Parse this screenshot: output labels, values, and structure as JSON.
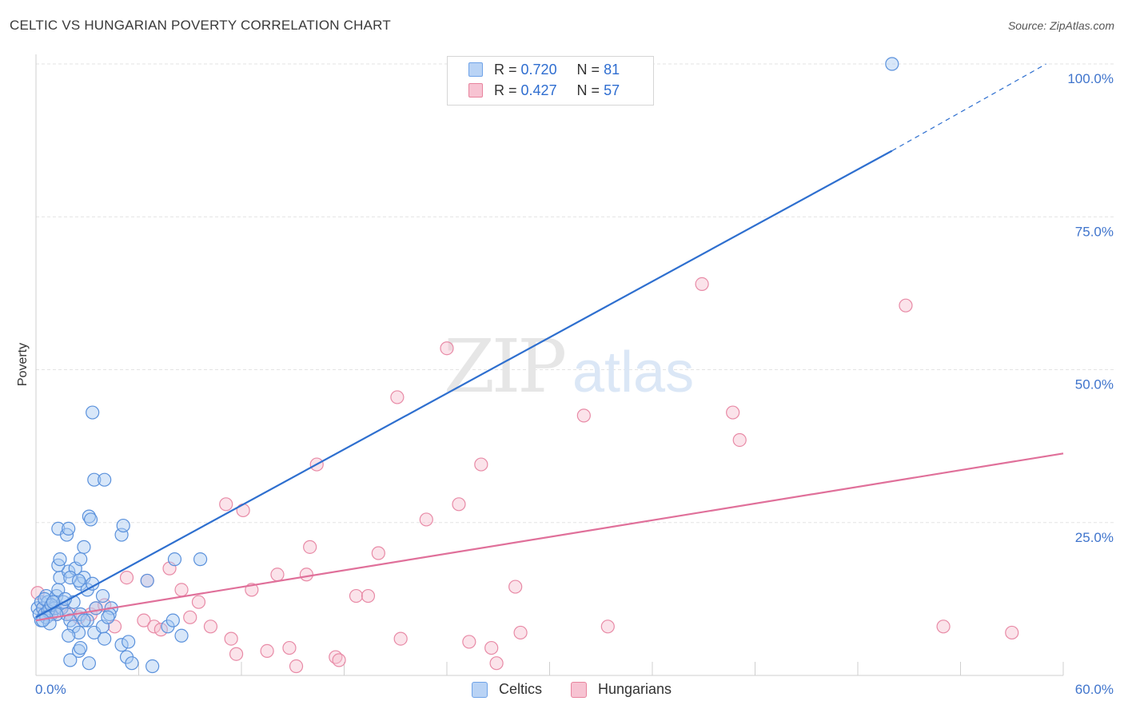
{
  "title": "CELTIC VS HUNGARIAN POVERTY CORRELATION CHART",
  "source": "Source: ZipAtlas.com",
  "watermark": {
    "zip": "ZIP",
    "atlas": "atlas"
  },
  "legend": {
    "r_label": "R =",
    "n_label": "N =",
    "rows": [
      {
        "name": "Celtics",
        "r": "0.720",
        "n": "81",
        "color": "#6fa3e8",
        "fill": "#b9d3f5"
      },
      {
        "name": "Hungarians",
        "r": "0.427",
        "n": "57",
        "color": "#e8849e",
        "fill": "#f7c3d2"
      }
    ]
  },
  "chart_data": {
    "type": "scatter",
    "title": "CELTIC VS HUNGARIAN POVERTY CORRELATION CHART",
    "xlabel": "",
    "ylabel": "Poverty",
    "xlim": [
      0,
      60
    ],
    "ylim": [
      0,
      100
    ],
    "x_tick_labels": [
      "0.0%",
      "60.0%"
    ],
    "y_ticks": [
      25,
      50,
      75,
      100
    ],
    "y_tick_labels": [
      "25.0%",
      "50.0%",
      "75.0%",
      "100.0%"
    ],
    "grid": true,
    "series": [
      {
        "name": "Celtics",
        "color": "#2e6fcf",
        "point_fill": "#a9c9f2",
        "point_stroke": "#5a91dc",
        "trend": {
          "x0": 0,
          "y0": 9.5,
          "x1": 50,
          "y1": 85.8,
          "dash_to_x": 59,
          "dash_to_y": 100
        },
        "points": [
          [
            0.1,
            11
          ],
          [
            0.2,
            10
          ],
          [
            0.3,
            12
          ],
          [
            0.4,
            11
          ],
          [
            0.5,
            10
          ],
          [
            0.6,
            13
          ],
          [
            0.7,
            12
          ],
          [
            0.8,
            11
          ],
          [
            0.9,
            10
          ],
          [
            1.0,
            12
          ],
          [
            1.1,
            11
          ],
          [
            1.2,
            13
          ],
          [
            0.3,
            9
          ],
          [
            0.5,
            12.5
          ],
          [
            0.7,
            10.5
          ],
          [
            0.9,
            11.5
          ],
          [
            1.3,
            14
          ],
          [
            1.5,
            11
          ],
          [
            1.6,
            12
          ],
          [
            1.8,
            10
          ],
          [
            2.0,
            9
          ],
          [
            1.4,
            16
          ],
          [
            1.9,
            17
          ],
          [
            2.3,
            17.5
          ],
          [
            2.6,
            15
          ],
          [
            2.8,
            16
          ],
          [
            3.0,
            14
          ],
          [
            3.3,
            15
          ],
          [
            3.5,
            11
          ],
          [
            3.9,
            13
          ],
          [
            4.4,
            11
          ],
          [
            4.3,
            10
          ],
          [
            1.3,
            24
          ],
          [
            1.8,
            23
          ],
          [
            1.9,
            24
          ],
          [
            2.8,
            21
          ],
          [
            2.6,
            19
          ],
          [
            1.3,
            18
          ],
          [
            1.4,
            19
          ],
          [
            3.1,
            26
          ],
          [
            3.2,
            25.5
          ],
          [
            3.4,
            32
          ],
          [
            4.0,
            32
          ],
          [
            5.0,
            23
          ],
          [
            5.1,
            24.5
          ],
          [
            2.0,
            16
          ],
          [
            2.5,
            15.5
          ],
          [
            3.3,
            43
          ],
          [
            6.5,
            15.5
          ],
          [
            8.1,
            19
          ],
          [
            9.6,
            19
          ],
          [
            2.2,
            12
          ],
          [
            2.6,
            10
          ],
          [
            3.0,
            9
          ],
          [
            2.2,
            8
          ],
          [
            2.5,
            7
          ],
          [
            1.9,
            6.5
          ],
          [
            3.4,
            7
          ],
          [
            3.9,
            8
          ],
          [
            5.0,
            5
          ],
          [
            5.4,
            5.5
          ],
          [
            5.3,
            3
          ],
          [
            5.6,
            2
          ],
          [
            2.0,
            2.5
          ],
          [
            3.1,
            2
          ],
          [
            2.5,
            4
          ],
          [
            2.6,
            4.5
          ],
          [
            6.8,
            1.5
          ],
          [
            7.7,
            8
          ],
          [
            8.0,
            9
          ],
          [
            8.5,
            6.5
          ],
          [
            4.0,
            6
          ],
          [
            4.2,
            9.5
          ],
          [
            2.8,
            9
          ],
          [
            1.7,
            12.5
          ],
          [
            1.2,
            10
          ],
          [
            0.6,
            9.5
          ],
          [
            0.8,
            8.5
          ],
          [
            0.4,
            9
          ],
          [
            1.0,
            12
          ],
          [
            50.0,
            100
          ]
        ]
      },
      {
        "name": "Hungarians",
        "color": "#e0709a",
        "point_fill": "#f6c0d0",
        "point_stroke": "#e88aa6",
        "trend": {
          "x0": 0,
          "y0": 9.0,
          "x1": 60,
          "y1": 36.3
        },
        "points": [
          [
            0.1,
            13.5
          ],
          [
            0.4,
            11
          ],
          [
            0.8,
            10.5
          ],
          [
            1.2,
            10
          ],
          [
            1.5,
            11
          ],
          [
            2.0,
            10
          ],
          [
            2.5,
            9.5
          ],
          [
            3.2,
            10
          ],
          [
            3.5,
            11
          ],
          [
            4.0,
            11.5
          ],
          [
            4.6,
            8
          ],
          [
            5.3,
            16
          ],
          [
            6.3,
            9
          ],
          [
            6.5,
            15.5
          ],
          [
            6.9,
            8
          ],
          [
            7.3,
            7.5
          ],
          [
            7.8,
            17.5
          ],
          [
            8.5,
            14
          ],
          [
            9.0,
            9.5
          ],
          [
            9.5,
            12
          ],
          [
            10.2,
            8
          ],
          [
            11.1,
            28
          ],
          [
            11.4,
            6
          ],
          [
            11.7,
            3.5
          ],
          [
            12.1,
            27
          ],
          [
            12.6,
            14
          ],
          [
            13.5,
            4
          ],
          [
            14.1,
            16.5
          ],
          [
            14.8,
            4.5
          ],
          [
            15.2,
            1.5
          ],
          [
            15.8,
            16.5
          ],
          [
            16.0,
            21
          ],
          [
            16.4,
            34.5
          ],
          [
            17.5,
            3
          ],
          [
            17.7,
            2.5
          ],
          [
            18.7,
            13
          ],
          [
            19.4,
            13
          ],
          [
            20.0,
            20
          ],
          [
            21.1,
            45.5
          ],
          [
            21.3,
            6
          ],
          [
            22.8,
            25.5
          ],
          [
            24.0,
            53.5
          ],
          [
            24.7,
            28
          ],
          [
            25.3,
            5.5
          ],
          [
            26.0,
            34.5
          ],
          [
            26.6,
            4.5
          ],
          [
            26.9,
            2
          ],
          [
            28.0,
            14.5
          ],
          [
            28.3,
            7
          ],
          [
            32.0,
            42.5
          ],
          [
            33.4,
            8
          ],
          [
            38.9,
            64
          ],
          [
            40.7,
            43
          ],
          [
            41.1,
            38.5
          ],
          [
            50.8,
            60.5
          ],
          [
            53.0,
            8
          ],
          [
            57.0,
            7
          ]
        ]
      }
    ]
  }
}
